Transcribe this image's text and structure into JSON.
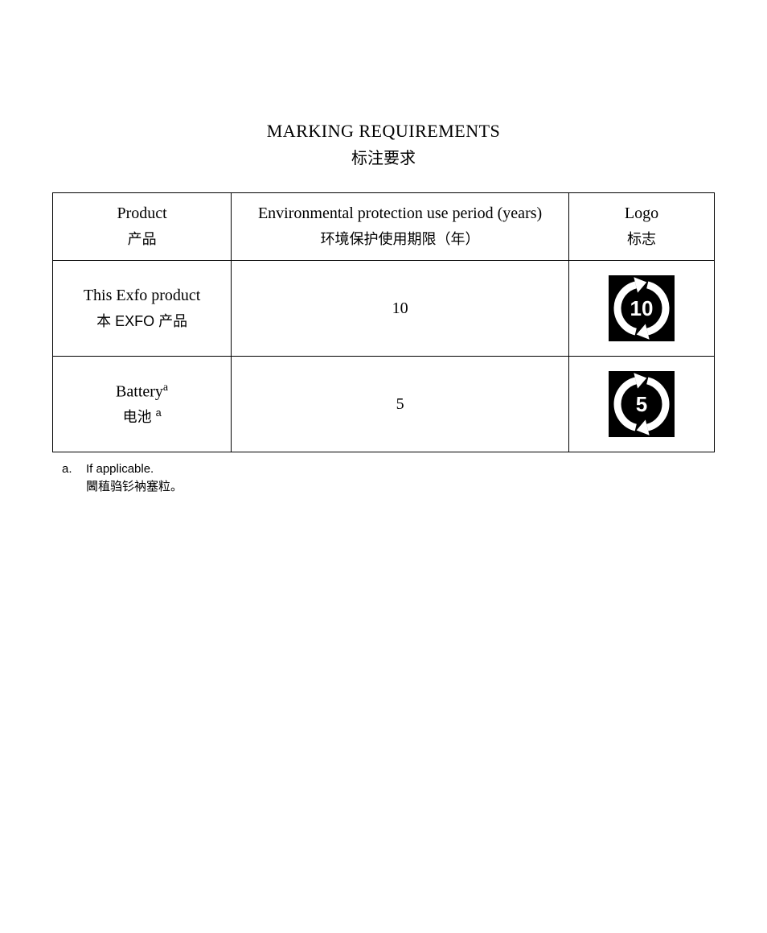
{
  "title": {
    "en": "MARKING REQUIREMENTS",
    "zh": "标注要求"
  },
  "table": {
    "headers": {
      "product": {
        "en": "Product",
        "zh": "产品"
      },
      "period": {
        "en": "Environmental protection use period (years)",
        "zh": "环境保护使用期限（年）"
      },
      "logo": {
        "en": "Logo",
        "zh": "标志"
      }
    },
    "rows": [
      {
        "product_en": "This Exfo product",
        "product_zh": "本 EXFO 产品",
        "product_sup": "",
        "period": "10",
        "logo_value": "10"
      },
      {
        "product_en": "Battery",
        "product_zh": "电池 ",
        "product_sup": "a",
        "period": "5",
        "logo_value": "5"
      }
    ]
  },
  "footnote": {
    "label": "a.",
    "en": "If applicable.",
    "zh": "閪稙驺钐衲塞粒。"
  },
  "style": {
    "page_bg": "#ffffff",
    "text_color": "#000000",
    "border_color": "#000000",
    "logo_bg": "#000000",
    "logo_fg": "#ffffff",
    "title_fontsize": 22,
    "cell_fontsize": 20,
    "zh_fontsize": 18,
    "footnote_fontsize": 15
  }
}
